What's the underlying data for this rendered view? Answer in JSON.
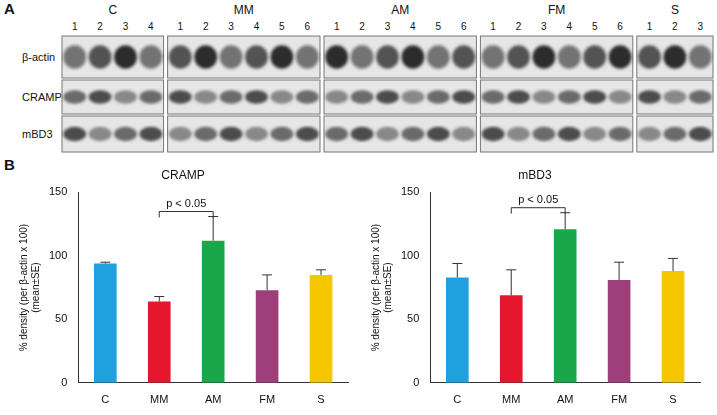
{
  "blot": {
    "letter": "A",
    "groups": [
      {
        "name": "C",
        "lanes": [
          1,
          2,
          3,
          4
        ]
      },
      {
        "name": "MM",
        "lanes": [
          1,
          2,
          3,
          4,
          5,
          6
        ]
      },
      {
        "name": "AM",
        "lanes": [
          1,
          2,
          3,
          4,
          5,
          6
        ]
      },
      {
        "name": "FM",
        "lanes": [
          1,
          2,
          3,
          4,
          5,
          6
        ]
      },
      {
        "name": "S",
        "lanes": [
          1,
          2,
          3
        ]
      }
    ],
    "rows": [
      "β-actin",
      "CRAMP",
      "mBD3"
    ]
  },
  "chart_letter": "B",
  "chart_data": [
    {
      "type": "bar",
      "title": "CRAMP",
      "y_label": [
        "% density (per β-actin x 100)",
        "(mean±SE)"
      ],
      "categories": [
        "C",
        "MM",
        "AM",
        "FM",
        "S"
      ],
      "values": [
        94,
        64,
        112,
        73,
        85
      ],
      "errors": [
        1,
        4,
        19,
        12,
        4
      ],
      "colors": [
        "#1ea1dc",
        "#e5162e",
        "#1aa64a",
        "#9c3f7b",
        "#f6c600"
      ],
      "ylim": [
        0,
        150
      ],
      "yticks": [
        0,
        50,
        100,
        150
      ],
      "grid": false,
      "annotations": [
        {
          "text": "p < 0.05",
          "from": "MM",
          "to": "AM"
        }
      ]
    },
    {
      "type": "bar",
      "title": "mBD3",
      "y_label": [
        "% density (per β-actin x 100)",
        "(mean±SE)"
      ],
      "categories": [
        "C",
        "MM",
        "AM",
        "FM",
        "S"
      ],
      "values": [
        83,
        69,
        121,
        81,
        88
      ],
      "errors": [
        11,
        20,
        13,
        14,
        10
      ],
      "colors": [
        "#1ea1dc",
        "#e5162e",
        "#1aa64a",
        "#9c3f7b",
        "#f6c600"
      ],
      "ylim": [
        0,
        150
      ],
      "yticks": [
        0,
        50,
        100,
        150
      ],
      "grid": false,
      "annotations": [
        {
          "text": "p < 0.05",
          "from": "MM",
          "to": "AM"
        }
      ]
    }
  ]
}
